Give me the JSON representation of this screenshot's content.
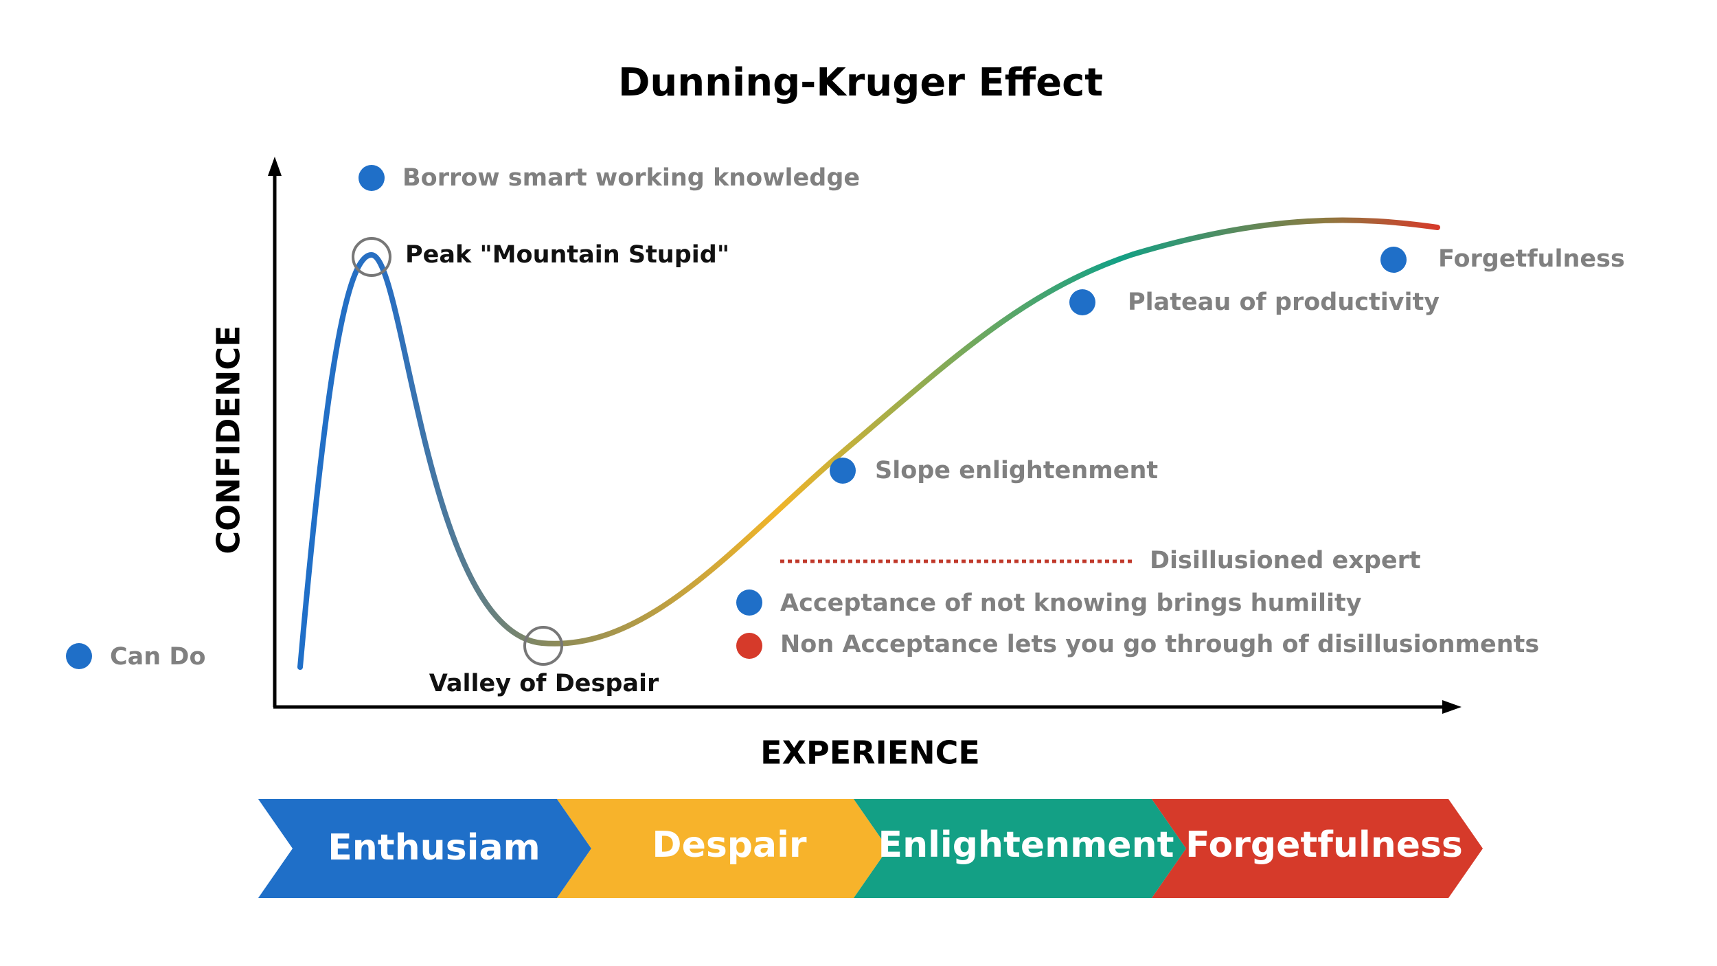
{
  "title": "Dunning-Kruger Effect",
  "axes": {
    "y_label": "CONFIDENCE",
    "x_label": "EXPERIENCE"
  },
  "curve_labels": {
    "peak": "Peak \"Mountain Stupid\"",
    "valley": "Valley of Despair"
  },
  "annotations": [
    "Borrow smart working knowledge",
    "Can Do",
    "Slope enlightenment",
    "Plateau of productivity",
    "Forgetfulness",
    "Disillusioned expert",
    "Acceptance of not knowing brings humility",
    "Non Acceptance lets you go through of disillusionments"
  ],
  "phases": [
    "Enthusiam",
    "Despair",
    "Enlightenment",
    "Forgetfulness"
  ]
}
